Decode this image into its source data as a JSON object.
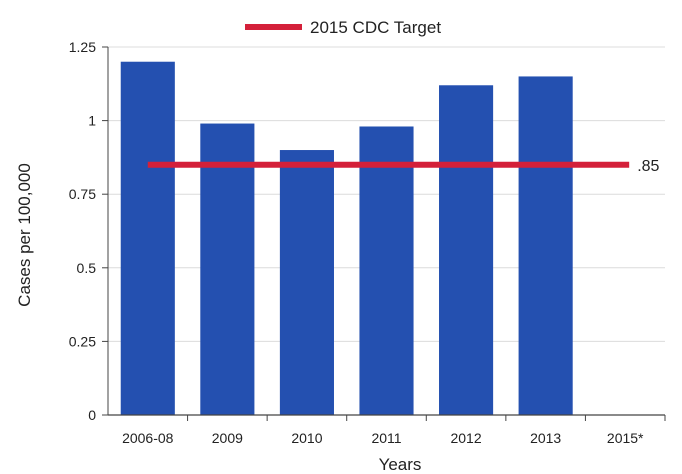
{
  "chart_data": {
    "type": "bar",
    "categories": [
      "2006-08",
      "2009",
      "2010",
      "2011",
      "2012",
      "2013",
      "2015*"
    ],
    "series": [
      {
        "values": [
          1.2,
          0.99,
          0.9,
          0.98,
          1.12,
          1.15,
          null
        ]
      }
    ],
    "target": {
      "name": "2015 CDC Target",
      "value": 0.85,
      "label": ".85",
      "color": "#d4203a"
    },
    "xlabel": "Years",
    "ylabel": "Cases per 100,000",
    "ylim": [
      0,
      1.25
    ],
    "yticks": [
      {
        "value": 0,
        "label": "0"
      },
      {
        "value": 0.25,
        "label": "0.25"
      },
      {
        "value": 0.5,
        "label": "0.5"
      },
      {
        "value": 0.75,
        "label": "0.75"
      },
      {
        "value": 1,
        "label": "1"
      },
      {
        "value": 1.25,
        "label": "1.25"
      }
    ],
    "grid": true,
    "legend": "top-center",
    "bar_color": "#2450b0"
  }
}
